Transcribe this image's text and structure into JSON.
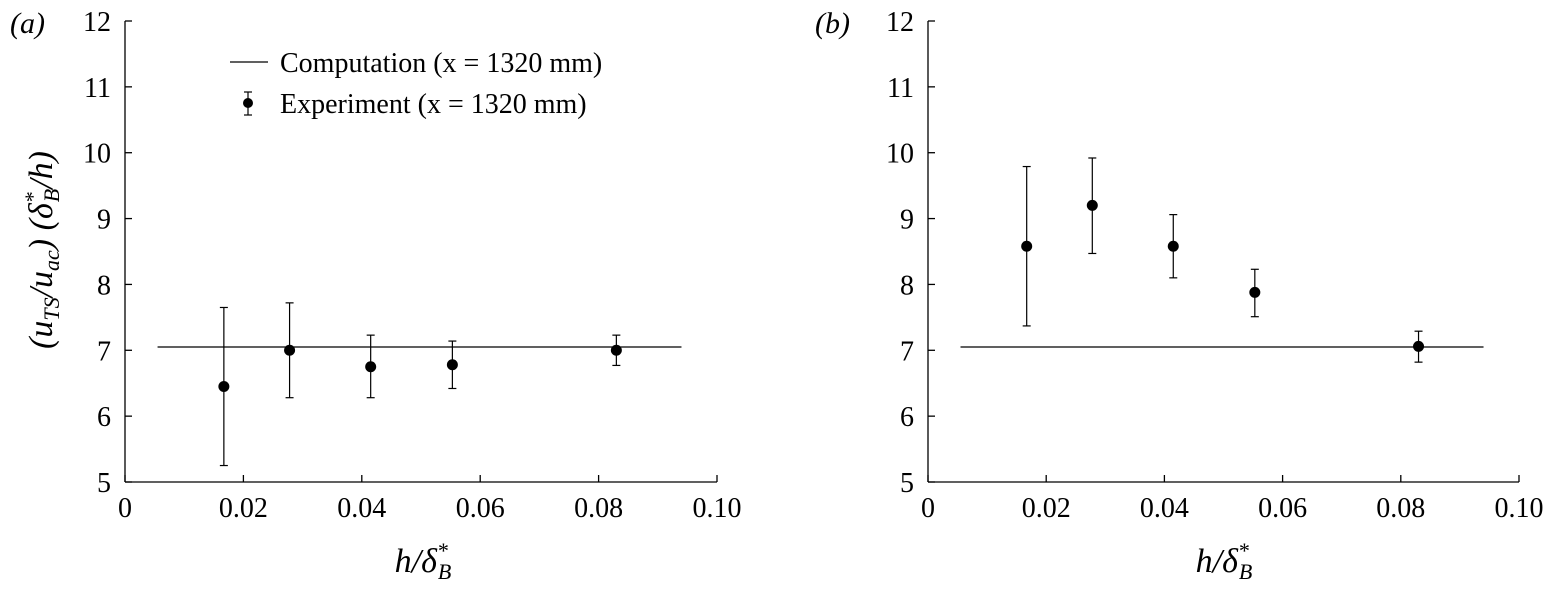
{
  "chart_data": [
    {
      "panel_label": "(a)",
      "type": "scatter",
      "xlabel": "h/δ*B",
      "ylabel": "(uTS/uac)(δ*B/h)",
      "xlim": [
        0,
        0.1
      ],
      "ylim": [
        5,
        12
      ],
      "x_ticks": [
        "0",
        "0.02",
        "0.04",
        "0.06",
        "0.08",
        "0.10"
      ],
      "y_ticks": [
        "5",
        "6",
        "7",
        "8",
        "9",
        "10",
        "11",
        "12"
      ],
      "grid": false,
      "legend": {
        "placement": "top-center",
        "entries": [
          "Computation (x = 1320 mm)",
          "Experiment (x = 1320 mm)"
        ]
      },
      "series": [
        {
          "name": "Computation (x = 1320 mm)",
          "style": "line",
          "x": [
            0.0055,
            0.094
          ],
          "y": [
            7.05,
            7.05
          ]
        },
        {
          "name": "Experiment (x = 1320 mm)",
          "style": "points-with-error-bars",
          "x": [
            0.0167,
            0.0278,
            0.0415,
            0.0553,
            0.083
          ],
          "y": [
            6.45,
            7.0,
            6.75,
            6.78,
            7.0
          ],
          "err_low": [
            5.25,
            6.28,
            6.28,
            6.42,
            6.77
          ],
          "err_high": [
            7.65,
            7.72,
            7.23,
            7.14,
            7.23
          ]
        }
      ]
    },
    {
      "panel_label": "(b)",
      "type": "scatter",
      "xlabel": "h/δ*B",
      "ylabel": "",
      "xlim": [
        0,
        0.1
      ],
      "ylim": [
        5,
        12
      ],
      "x_ticks": [
        "0",
        "0.02",
        "0.04",
        "0.06",
        "0.08",
        "0.10"
      ],
      "y_ticks": [
        "5",
        "6",
        "7",
        "8",
        "9",
        "10",
        "11",
        "12"
      ],
      "grid": false,
      "series": [
        {
          "name": "Computation",
          "style": "line",
          "x": [
            0.0055,
            0.094
          ],
          "y": [
            7.05,
            7.05
          ]
        },
        {
          "name": "Experiment",
          "style": "points-with-error-bars",
          "x": [
            0.0167,
            0.0278,
            0.0415,
            0.0553,
            0.083
          ],
          "y": [
            8.58,
            9.2,
            8.58,
            7.88,
            7.06
          ],
          "err_low": [
            7.37,
            8.47,
            8.1,
            7.51,
            6.82
          ],
          "err_high": [
            9.79,
            9.92,
            9.06,
            8.23,
            7.29
          ]
        }
      ]
    }
  ]
}
